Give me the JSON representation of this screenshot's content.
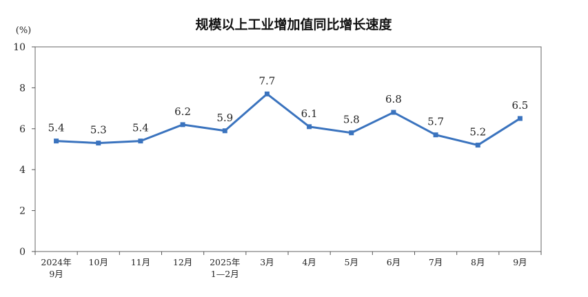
{
  "chart_data": {
    "type": "line",
    "title": "规模以上工业增加值同比增长速度",
    "unit": "(%)",
    "xlabel": "",
    "ylabel": "",
    "ylim": [
      0,
      10
    ],
    "yticks": [
      "0",
      "2",
      "4",
      "6",
      "8",
      "10"
    ],
    "grid": false,
    "categories": [
      [
        "2024年",
        "9月"
      ],
      [
        "10月"
      ],
      [
        "11月"
      ],
      [
        "12月"
      ],
      [
        "2025年",
        "1—2月"
      ],
      [
        "3月"
      ],
      [
        "4月"
      ],
      [
        "5月"
      ],
      [
        "6月"
      ],
      [
        "7月"
      ],
      [
        "8月"
      ],
      [
        "9月"
      ]
    ],
    "values": [
      5.4,
      5.3,
      5.4,
      6.2,
      5.9,
      7.7,
      6.1,
      5.8,
      6.8,
      5.7,
      5.2,
      6.5
    ],
    "value_labels": [
      "5.4",
      "5.3",
      "5.4",
      "6.2",
      "5.9",
      "7.7",
      "6.1",
      "5.8",
      "6.8",
      "5.7",
      "5.2",
      "6.5"
    ],
    "colors": {
      "line": "#3a73be",
      "axis": "#555555"
    }
  }
}
